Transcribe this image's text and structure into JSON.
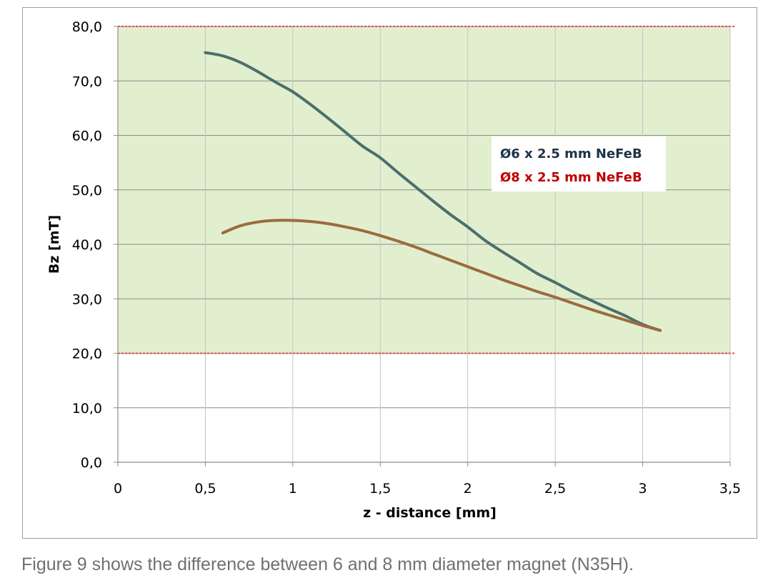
{
  "chart_data": {
    "type": "line",
    "title": "",
    "xlabel": "z - distance [mm]",
    "ylabel": "Bz [mT]",
    "xlim": [
      0,
      3.5
    ],
    "ylim": [
      0,
      80
    ],
    "x_ticks": [
      "0",
      "0,5",
      "1",
      "1,5",
      "2",
      "2,5",
      "3",
      "3,5"
    ],
    "x_tick_values": [
      0,
      0.5,
      1,
      1.5,
      2,
      2.5,
      3,
      3.5
    ],
    "y_ticks": [
      "0,0",
      "10,0",
      "20,0",
      "30,0",
      "40,0",
      "50,0",
      "60,0",
      "70,0",
      "80,0"
    ],
    "y_tick_values": [
      0,
      10,
      20,
      30,
      40,
      50,
      60,
      70,
      80
    ],
    "grid": true,
    "shaded_band": {
      "from": 20,
      "to": 80,
      "color": "#e2efcf"
    },
    "reference_lines": [
      {
        "y": 80,
        "color": "#e05050",
        "style": "dashed"
      },
      {
        "y": 20,
        "color": "#e05050",
        "style": "dashed"
      }
    ],
    "legend_position": "right, inside plot",
    "series": [
      {
        "name": "Ø6 x 2.5 mm NeFeB",
        "color": "#4b6f6c",
        "label_color": "#1f3346",
        "x": [
          0.5,
          0.6,
          0.7,
          0.8,
          0.9,
          1.0,
          1.1,
          1.2,
          1.3,
          1.4,
          1.5,
          1.6,
          1.7,
          1.8,
          1.9,
          2.0,
          2.1,
          2.2,
          2.3,
          2.4,
          2.5,
          2.6,
          2.7,
          2.8,
          2.9,
          3.0,
          3.1
        ],
        "y": [
          75.2,
          74.6,
          73.4,
          71.7,
          69.8,
          68.0,
          65.7,
          63.2,
          60.6,
          58.0,
          55.9,
          53.2,
          50.6,
          48.0,
          45.5,
          43.2,
          40.7,
          38.6,
          36.6,
          34.6,
          33.0,
          31.3,
          29.8,
          28.3,
          26.9,
          25.3,
          24.2
        ]
      },
      {
        "name": "Ø8 x 2.5 mm NeFeB",
        "color": "#9b6b3e",
        "label_color": "#c00000",
        "x": [
          0.6,
          0.7,
          0.8,
          0.9,
          1.0,
          1.1,
          1.2,
          1.3,
          1.4,
          1.5,
          1.6,
          1.7,
          1.8,
          1.9,
          2.0,
          2.1,
          2.2,
          2.3,
          2.4,
          2.5,
          2.6,
          2.7,
          2.8,
          2.9,
          3.0,
          3.1
        ],
        "y": [
          42.1,
          43.4,
          44.1,
          44.4,
          44.4,
          44.2,
          43.8,
          43.2,
          42.5,
          41.6,
          40.6,
          39.5,
          38.3,
          37.1,
          35.9,
          34.7,
          33.5,
          32.4,
          31.3,
          30.3,
          29.2,
          28.1,
          27.1,
          26.1,
          25.1,
          24.2
        ]
      }
    ]
  },
  "caption": "Figure 9 shows the difference between 6 and 8 mm diameter magnet (N35H)."
}
